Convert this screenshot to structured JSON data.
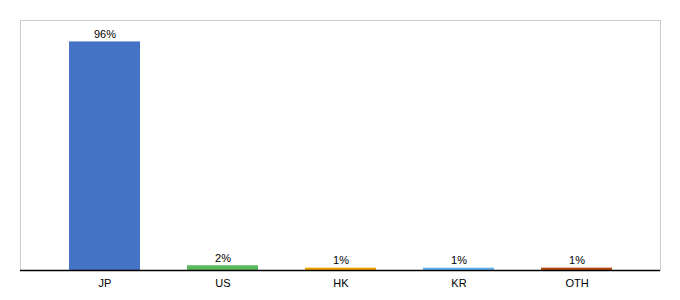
{
  "chart_data": {
    "type": "bar",
    "categories": [
      "JP",
      "US",
      "HK",
      "KR",
      "OTH"
    ],
    "values": [
      96,
      2,
      1,
      1,
      1
    ],
    "value_labels": [
      "96%",
      "2%",
      "1%",
      "1%",
      "1%"
    ],
    "colors": [
      "#4472c4",
      "#5cb85c",
      "#f0a500",
      "#64b5f6",
      "#b84c10"
    ],
    "ylim": [
      0,
      105
    ],
    "data_labels": true,
    "tick_labels": "x",
    "grid": false
  }
}
